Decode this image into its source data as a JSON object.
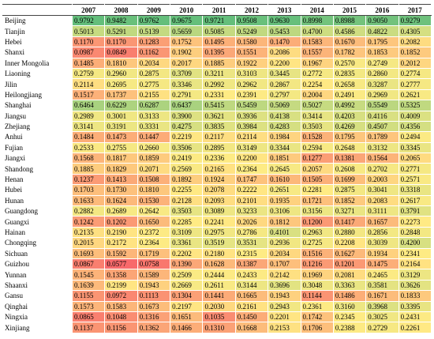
{
  "table": {
    "columns": [
      "2007",
      "2008",
      "2009",
      "2010",
      "2011",
      "2012",
      "2013",
      "2014",
      "2015",
      "2016",
      "2017"
    ],
    "rows": [
      {
        "label": "Beijing",
        "values": [
          "0.9792",
          "0.9482",
          "0.9762",
          "0.9675",
          "0.9721",
          "0.9508",
          "0.9630",
          "0.8998",
          "0.8988",
          "0.9050",
          "0.9279"
        ]
      },
      {
        "label": "Tianjin",
        "values": [
          "0.5013",
          "0.5291",
          "0.5139",
          "0.5659",
          "0.5085",
          "0.5249",
          "0.5453",
          "0.4700",
          "0.4586",
          "0.4822",
          "0.4305"
        ]
      },
      {
        "label": "Hebei",
        "values": [
          "0.1170",
          "0.1170",
          "0.1283",
          "0.1752",
          "0.1495",
          "0.1580",
          "0.1470",
          "0.1583",
          "0.1670",
          "0.1795",
          "0.2082"
        ]
      },
      {
        "label": "Shanxi",
        "values": [
          "0.0987",
          "0.0849",
          "0.1162",
          "0.1902",
          "0.1395",
          "0.1551",
          "0.2086",
          "0.1557",
          "0.1782",
          "0.1853",
          "0.1852"
        ]
      },
      {
        "label": "Inner Mongolia",
        "values": [
          "0.1485",
          "0.1810",
          "0.2034",
          "0.2017",
          "0.1885",
          "0.1922",
          "0.2200",
          "0.1967",
          "0.2570",
          "0.2749",
          "0.2012"
        ]
      },
      {
        "label": "Liaoning",
        "values": [
          "0.2759",
          "0.2960",
          "0.2875",
          "0.3709",
          "0.3211",
          "0.3103",
          "0.3445",
          "0.2772",
          "0.2835",
          "0.2860",
          "0.2774"
        ]
      },
      {
        "label": "Jilin",
        "values": [
          "0.2114",
          "0.2695",
          "0.2775",
          "0.3346",
          "0.2992",
          "0.2962",
          "0.2867",
          "0.2254",
          "0.2658",
          "0.3287",
          "0.2777"
        ]
      },
      {
        "label": "Heilongjiang",
        "values": [
          "0.1517",
          "0.1737",
          "0.2155",
          "0.2791",
          "0.2331",
          "0.2391",
          "0.2797",
          "0.2004",
          "0.2491",
          "0.2969",
          "0.2621"
        ]
      },
      {
        "label": "Shanghai",
        "values": [
          "0.6464",
          "0.6229",
          "0.6287",
          "0.6437",
          "0.5415",
          "0.5459",
          "0.5069",
          "0.5027",
          "0.4992",
          "0.5549",
          "0.5325"
        ]
      },
      {
        "label": "Jiangsu",
        "values": [
          "0.2989",
          "0.3001",
          "0.3133",
          "0.3900",
          "0.3621",
          "0.3936",
          "0.4138",
          "0.3414",
          "0.4203",
          "0.4116",
          "0.4009"
        ]
      },
      {
        "label": "Zhejiang",
        "values": [
          "0.3141",
          "0.3191",
          "0.3331",
          "0.4275",
          "0.3835",
          "0.3984",
          "0.4283",
          "0.3503",
          "0.4269",
          "0.4507",
          "0.4356"
        ]
      },
      {
        "label": "Anhui",
        "values": [
          "0.1484",
          "0.1473",
          "0.1447",
          "0.2219",
          "0.2117",
          "0.2114",
          "0.1984",
          "0.1528",
          "0.1795",
          "0.1789",
          "0.2494"
        ]
      },
      {
        "label": "Fujian",
        "values": [
          "0.2533",
          "0.2755",
          "0.2660",
          "0.3506",
          "0.2895",
          "0.3149",
          "0.3344",
          "0.2594",
          "0.2648",
          "0.3132",
          "0.3345"
        ]
      },
      {
        "label": "Jiangxi",
        "values": [
          "0.1568",
          "0.1817",
          "0.1859",
          "0.2419",
          "0.2336",
          "0.2200",
          "0.1851",
          "0.1277",
          "0.1381",
          "0.1564",
          "0.2065"
        ]
      },
      {
        "label": "Shandong",
        "values": [
          "0.1885",
          "0.1829",
          "0.2071",
          "0.2569",
          "0.2165",
          "0.2364",
          "0.2645",
          "0.2057",
          "0.2608",
          "0.2702",
          "0.2771"
        ]
      },
      {
        "label": "Henan",
        "values": [
          "0.1237",
          "0.1413",
          "0.1508",
          "0.1892",
          "0.1924",
          "0.1747",
          "0.1610",
          "0.1505",
          "0.1699",
          "0.2003",
          "0.2571"
        ]
      },
      {
        "label": "Hubei",
        "values": [
          "0.1703",
          "0.1730",
          "0.1810",
          "0.2255",
          "0.2078",
          "0.2222",
          "0.2651",
          "0.2281",
          "0.2875",
          "0.3041",
          "0.3318"
        ]
      },
      {
        "label": "Hunan",
        "values": [
          "0.1633",
          "0.1624",
          "0.1530",
          "0.2128",
          "0.2093",
          "0.2101",
          "0.1935",
          "0.1721",
          "0.1852",
          "0.2083",
          "0.2617"
        ]
      },
      {
        "label": "Guangdong",
        "values": [
          "0.2882",
          "0.2689",
          "0.2642",
          "0.3503",
          "0.3089",
          "0.3233",
          "0.3106",
          "0.3156",
          "0.3271",
          "0.3111",
          "0.3791"
        ]
      },
      {
        "label": "Guangxi",
        "values": [
          "0.1242",
          "0.1202",
          "0.1650",
          "0.2285",
          "0.2241",
          "0.2026",
          "0.1812",
          "0.1200",
          "0.1417",
          "0.1657",
          "0.2273"
        ]
      },
      {
        "label": "Hainan",
        "values": [
          "0.2135",
          "0.2190",
          "0.2372",
          "0.3109",
          "0.2975",
          "0.2786",
          "0.4101",
          "0.2963",
          "0.2880",
          "0.2856",
          "0.2848"
        ]
      },
      {
        "label": "Chongqing",
        "values": [
          "0.2015",
          "0.2172",
          "0.2364",
          "0.3361",
          "0.3519",
          "0.3531",
          "0.2936",
          "0.2725",
          "0.2208",
          "0.3039",
          "0.4200"
        ]
      },
      {
        "label": "Sichuan",
        "values": [
          "0.1693",
          "0.1592",
          "0.1719",
          "0.2202",
          "0.2180",
          "0.2315",
          "0.2034",
          "0.1516",
          "0.1627",
          "0.1934",
          "0.2341"
        ]
      },
      {
        "label": "Guizhou",
        "values": [
          "0.0867",
          "0.0577",
          "0.0758",
          "0.1390",
          "0.1628",
          "0.1387",
          "0.1707",
          "0.1216",
          "0.1201",
          "0.1475",
          "0.2164"
        ]
      },
      {
        "label": "Yunnan",
        "values": [
          "0.1545",
          "0.1358",
          "0.1589",
          "0.2509",
          "0.2444",
          "0.2433",
          "0.2142",
          "0.1969",
          "0.2081",
          "0.2465",
          "0.3129"
        ]
      },
      {
        "label": "Shaanxi",
        "values": [
          "0.1639",
          "0.2199",
          "0.1943",
          "0.2669",
          "0.2611",
          "0.3144",
          "0.3696",
          "0.3048",
          "0.3363",
          "0.3581",
          "0.3626"
        ]
      },
      {
        "label": "Gansu",
        "values": [
          "0.1155",
          "0.0972",
          "0.1113",
          "0.1304",
          "0.1441",
          "0.1665",
          "0.1943",
          "0.1144",
          "0.1486",
          "0.1671",
          "0.1833"
        ]
      },
      {
        "label": "Qinghai",
        "values": [
          "0.1573",
          "0.1583",
          "0.1673",
          "0.2197",
          "0.2030",
          "0.2161",
          "0.2943",
          "0.2361",
          "0.3160",
          "0.3968",
          "0.3395"
        ]
      },
      {
        "label": "Ningxia",
        "values": [
          "0.0865",
          "0.1048",
          "0.1316",
          "0.1651",
          "0.1035",
          "0.1450",
          "0.2201",
          "0.1742",
          "0.2345",
          "0.3025",
          "0.2431"
        ]
      },
      {
        "label": "Xinjiang",
        "values": [
          "0.1137",
          "0.1156",
          "0.1362",
          "0.1466",
          "0.1310",
          "0.1668",
          "0.2153",
          "0.1706",
          "0.2388",
          "0.2729",
          "0.2261"
        ]
      }
    ]
  }
}
